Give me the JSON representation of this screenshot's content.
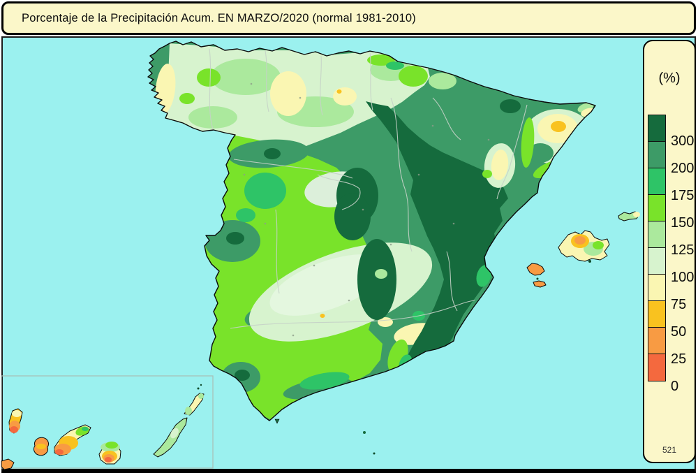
{
  "title": {
    "text": "Porcentaje de la Precipitación Acum. EN  MARZO/2020  (normal 1981-2010)"
  },
  "legend": {
    "unit_label": "(%)",
    "entries": [
      {
        "label": "300",
        "key": "p300"
      },
      {
        "label": "200",
        "key": "p200"
      },
      {
        "label": "175",
        "key": "p175"
      },
      {
        "label": "150",
        "key": "p150"
      },
      {
        "label": "125",
        "key": "p125"
      },
      {
        "label": "100",
        "key": "p100"
      },
      {
        "label": "75",
        "key": "p75"
      },
      {
        "label": "50",
        "key": "p50"
      },
      {
        "label": "25",
        "key": "p25"
      },
      {
        "label": "0",
        "key": "p0"
      }
    ],
    "footnote": "521"
  },
  "palette": {
    "p300": "#156B3D",
    "p200": "#3D9B67",
    "p175": "#2EC467",
    "p150": "#79E32A",
    "p125": "#ABE99D",
    "p100": "#D7F3CE",
    "p75": "#FAF6B2",
    "p50": "#F9C21F",
    "p25": "#F89B43",
    "p0": "#F4693E",
    "sea": "#9BF1EF",
    "panel": "#FBF7C9",
    "pale_valley": "#E4F7DF",
    "pale_madrid": "#DCEFDA",
    "mark_dark": "#0E4A2A"
  }
}
